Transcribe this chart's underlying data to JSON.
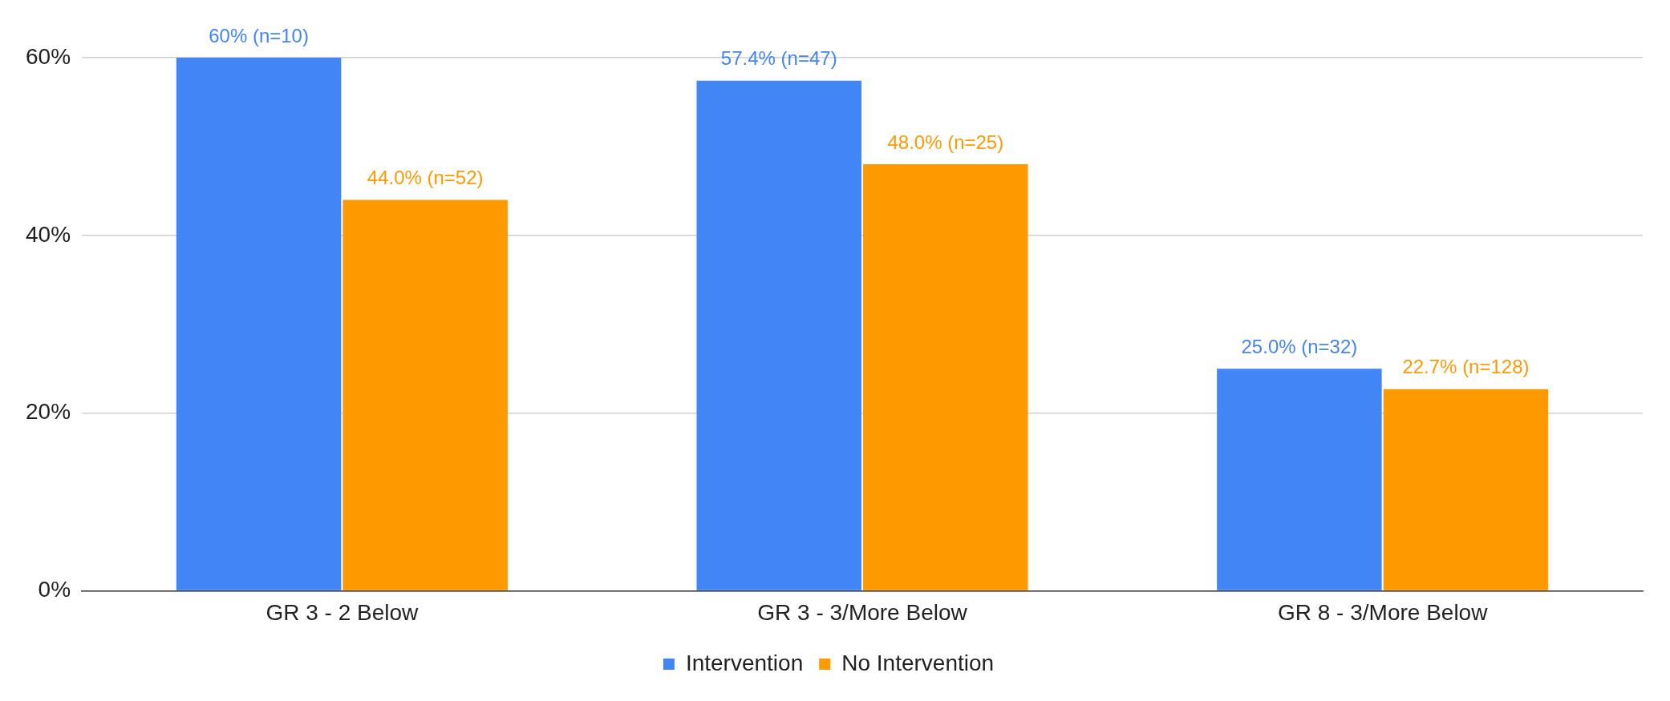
{
  "chart_data": {
    "type": "bar",
    "categories": [
      "GR 3 - 2 Below",
      "GR 3 - 3/More Below",
      "GR 8 - 3/More Below"
    ],
    "series": [
      {
        "name": "Intervention",
        "color": "#4285f4",
        "values": [
          60,
          57.4,
          25
        ],
        "value_labels": [
          "60% (n=10)",
          "57.4% (n=47)",
          "25.0% (n=32)"
        ]
      },
      {
        "name": "No Intervention",
        "color": "#ff9900",
        "values": [
          44,
          48,
          22.7
        ],
        "value_labels": [
          "44.0% (n=52)",
          "48.0% (n=25)",
          "22.7% (n=128)"
        ]
      }
    ],
    "ylim": [
      0,
      60
    ],
    "yticks": [
      {
        "value": 0,
        "label": "0%"
      },
      {
        "value": 20,
        "label": "20%"
      },
      {
        "value": 40,
        "label": "40%"
      },
      {
        "value": 60,
        "label": "60%"
      }
    ],
    "grid": "y",
    "legend": "bottom"
  }
}
